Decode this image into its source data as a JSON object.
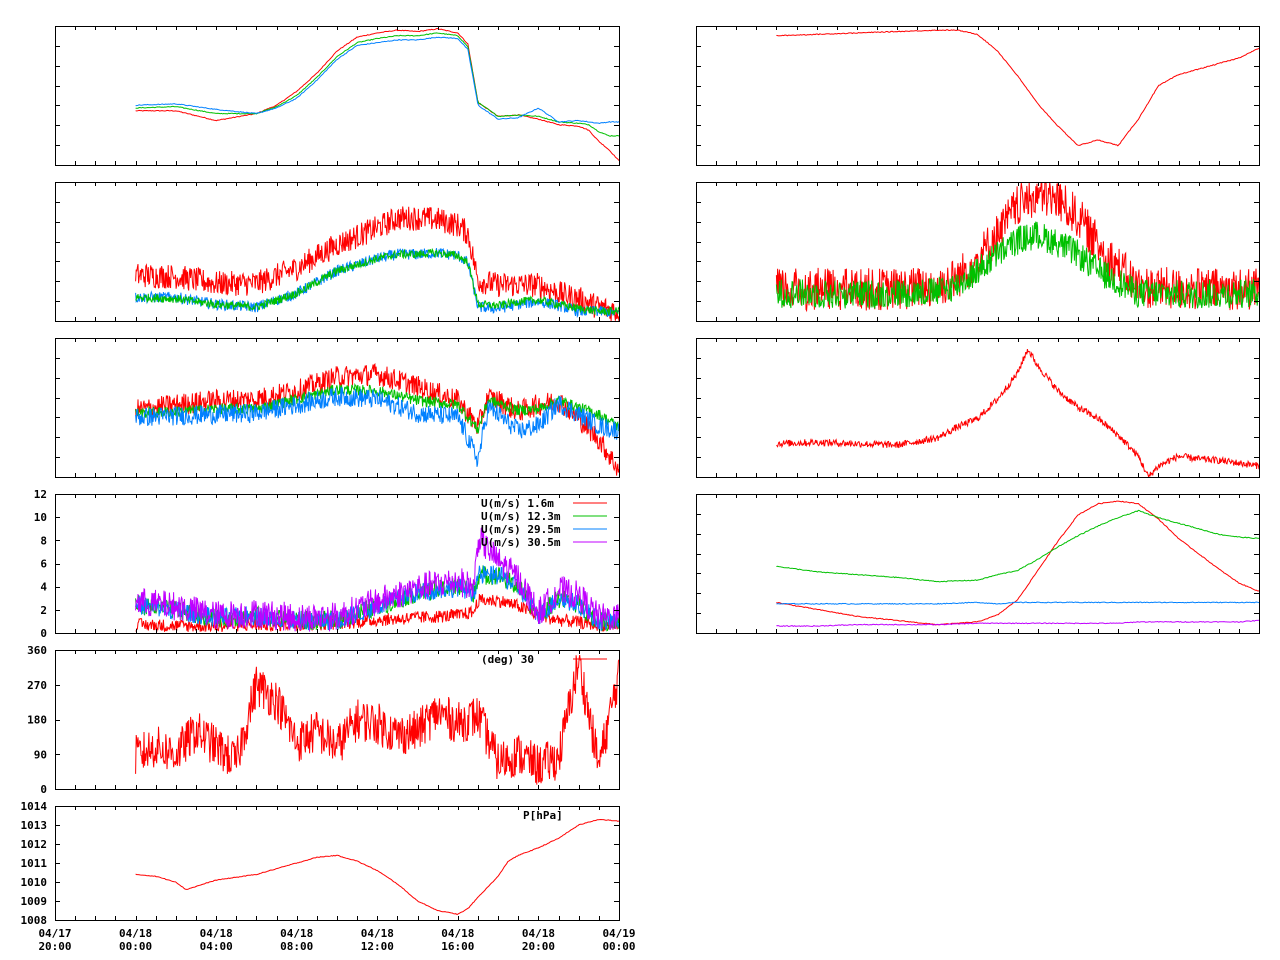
{
  "colors": {
    "red": "#ff0000",
    "green": "#00c000",
    "blue": "#0080ff",
    "purple": "#c000ff",
    "frame": "#000000",
    "background": "#ffffff"
  },
  "x_axis": {
    "range": [
      "04/17 20:00",
      "04/19 00:00"
    ],
    "ticks": [
      {
        "date": "04/17",
        "time": "20:00"
      },
      {
        "date": "04/18",
        "time": "00:00"
      },
      {
        "date": "04/18",
        "time": "04:00"
      },
      {
        "date": "04/18",
        "time": "08:00"
      },
      {
        "date": "04/18",
        "time": "12:00"
      },
      {
        "date": "04/18",
        "time": "16:00"
      },
      {
        "date": "04/18",
        "time": "20:00"
      },
      {
        "date": "04/19",
        "time": "00:00"
      }
    ]
  },
  "chart_data": [
    {
      "id": "left-temperature",
      "type": "line",
      "y_labels_shown": false,
      "ylim": [
        0,
        1
      ],
      "x_hours": [
        4,
        6,
        8,
        10,
        11,
        12,
        13,
        14,
        15,
        16,
        17,
        18,
        19,
        20,
        20.5,
        21,
        22,
        23,
        24,
        25,
        26,
        26.5,
        27,
        27.5,
        28
      ],
      "series": [
        {
          "color": "red",
          "values": [
            0.39,
            0.39,
            0.32,
            0.37,
            0.43,
            0.53,
            0.66,
            0.82,
            0.92,
            0.95,
            0.97,
            0.96,
            0.98,
            0.95,
            0.87,
            0.45,
            0.35,
            0.36,
            0.33,
            0.29,
            0.28,
            0.25,
            0.17,
            0.11,
            0.03
          ]
        },
        {
          "color": "green",
          "values": [
            0.41,
            0.42,
            0.37,
            0.37,
            0.42,
            0.5,
            0.63,
            0.78,
            0.88,
            0.91,
            0.93,
            0.93,
            0.95,
            0.93,
            0.85,
            0.45,
            0.35,
            0.36,
            0.35,
            0.31,
            0.3,
            0.29,
            0.24,
            0.21,
            0.21
          ]
        },
        {
          "color": "blue",
          "values": [
            0.43,
            0.44,
            0.4,
            0.37,
            0.41,
            0.48,
            0.61,
            0.76,
            0.86,
            0.88,
            0.9,
            0.9,
            0.92,
            0.91,
            0.83,
            0.43,
            0.33,
            0.34,
            0.41,
            0.31,
            0.32,
            0.31,
            0.3,
            0.31,
            0.31
          ]
        }
      ]
    },
    {
      "id": "left-humidity",
      "type": "line",
      "y_labels_shown": false,
      "ylim": [
        0,
        1
      ],
      "x_hours": [
        4,
        6,
        8,
        10,
        12,
        14,
        16,
        17,
        18,
        19,
        20,
        20.5,
        21,
        22,
        23,
        24,
        25,
        26,
        27,
        28
      ],
      "series": [
        {
          "color": "red",
          "values": [
            0.33,
            0.32,
            0.27,
            0.27,
            0.38,
            0.55,
            0.67,
            0.74,
            0.74,
            0.73,
            0.69,
            0.63,
            0.29,
            0.26,
            0.26,
            0.26,
            0.2,
            0.16,
            0.1,
            0.07
          ],
          "noise": 0.09
        },
        {
          "color": "blue",
          "values": [
            0.17,
            0.17,
            0.12,
            0.1,
            0.2,
            0.36,
            0.45,
            0.48,
            0.48,
            0.49,
            0.47,
            0.42,
            0.1,
            0.09,
            0.12,
            0.14,
            0.11,
            0.07,
            0.07,
            0.06
          ],
          "noise": 0.04
        },
        {
          "color": "green",
          "values": [
            0.17,
            0.16,
            0.12,
            0.1,
            0.2,
            0.36,
            0.45,
            0.48,
            0.48,
            0.49,
            0.47,
            0.42,
            0.12,
            0.11,
            0.14,
            0.15,
            0.12,
            0.09,
            0.07,
            0.07
          ],
          "noise": 0.03
        }
      ]
    },
    {
      "id": "left-temperature-diff",
      "type": "line",
      "y_labels_shown": false,
      "ylim": [
        0,
        1
      ],
      "x_hours": [
        4,
        6,
        8,
        10,
        12,
        14,
        16,
        18,
        20,
        21,
        21.5,
        22,
        23,
        24,
        25,
        26,
        27,
        28
      ],
      "series": [
        {
          "color": "red",
          "values": [
            0.48,
            0.52,
            0.55,
            0.56,
            0.62,
            0.72,
            0.74,
            0.65,
            0.55,
            0.36,
            0.57,
            0.55,
            0.47,
            0.52,
            0.55,
            0.42,
            0.27,
            0.05
          ],
          "noise": 0.08
        },
        {
          "color": "green",
          "values": [
            0.46,
            0.47,
            0.49,
            0.49,
            0.56,
            0.63,
            0.62,
            0.55,
            0.52,
            0.34,
            0.55,
            0.53,
            0.48,
            0.49,
            0.55,
            0.5,
            0.45,
            0.36
          ],
          "noise": 0.04
        },
        {
          "color": "blue",
          "values": [
            0.43,
            0.44,
            0.45,
            0.46,
            0.52,
            0.58,
            0.56,
            0.46,
            0.43,
            0.12,
            0.5,
            0.45,
            0.33,
            0.37,
            0.53,
            0.45,
            0.37,
            0.33
          ],
          "noise": 0.07
        }
      ]
    },
    {
      "id": "left-wind-speed",
      "type": "line",
      "ylim": [
        0,
        12
      ],
      "yticks": [
        0,
        2,
        4,
        6,
        8,
        10,
        12
      ],
      "x_hours": [
        4,
        6,
        8,
        10,
        12,
        14,
        16,
        18,
        20,
        20.8,
        21,
        22,
        23,
        24,
        25,
        26,
        27,
        28
      ],
      "legend": [
        "U(m/s)  1.6m",
        "U(m/s) 12.3m",
        "U(m/s) 29.5m",
        "U(m/s) 30.5m"
      ],
      "series": [
        {
          "color": "red",
          "values": [
            0.4,
            0.3,
            0.3,
            0.4,
            0.4,
            0.5,
            0.8,
            1.0,
            1.2,
            1.5,
            2.5,
            2.5,
            2.0,
            1.2,
            0.8,
            0.6,
            0.4,
            0.3
          ],
          "noise": 0.8
        },
        {
          "color": "green",
          "values": [
            2.0,
            1.5,
            0.8,
            1.0,
            0.6,
            0.6,
            1.8,
            3.0,
            3.5,
            3.0,
            4.5,
            4.5,
            3.5,
            1.0,
            2.5,
            2.0,
            0.5,
            0.6
          ],
          "noise": 1.2
        },
        {
          "color": "blue",
          "values": [
            2.0,
            1.5,
            0.8,
            1.0,
            0.6,
            0.6,
            1.8,
            3.0,
            3.5,
            3.0,
            4.5,
            4.5,
            3.5,
            1.0,
            2.5,
            2.0,
            0.5,
            0.6
          ],
          "noise": 1.2
        },
        {
          "color": "purple",
          "values": [
            2.0,
            1.6,
            0.8,
            1.0,
            0.6,
            0.7,
            2.0,
            3.2,
            3.8,
            3.2,
            7.5,
            5.5,
            4.0,
            1.0,
            3.0,
            2.5,
            0.6,
            0.7
          ],
          "noise": 1.8
        }
      ]
    },
    {
      "id": "left-wind-direction",
      "type": "line",
      "ylim": [
        0,
        360
      ],
      "yticks": [
        0,
        90,
        180,
        270,
        360
      ],
      "legend": [
        "(deg)  30"
      ],
      "x_hours": [
        4,
        5,
        6,
        7,
        8,
        9,
        10,
        11,
        12,
        13,
        14,
        15,
        16,
        17,
        18,
        19,
        20,
        21,
        22,
        23,
        24,
        25,
        26,
        27,
        28
      ],
      "series": [
        {
          "color": "red",
          "values": [
            85,
            110,
            90,
            150,
            110,
            70,
            270,
            230,
            120,
            150,
            110,
            180,
            170,
            140,
            150,
            200,
            170,
            190,
            70,
            90,
            60,
            80,
            330,
            60,
            300
          ],
          "noise": 55
        }
      ]
    },
    {
      "id": "left-pressure",
      "type": "line",
      "ylim": [
        1008,
        1014
      ],
      "yticks": [
        1008,
        1009,
        1010,
        1011,
        1012,
        1013,
        1014
      ],
      "legend": [
        "P[hPa]"
      ],
      "x_hours": [
        4,
        5,
        6,
        6.5,
        8,
        10,
        12,
        13,
        14,
        15,
        16,
        17,
        18,
        19,
        20,
        20.5,
        21,
        22,
        22.5,
        23,
        24,
        25,
        26,
        27,
        28
      ],
      "series": [
        {
          "color": "red",
          "values": [
            1010.4,
            1010.3,
            1010.0,
            1009.6,
            1010.1,
            1010.4,
            1011.0,
            1011.3,
            1011.4,
            1011.1,
            1010.6,
            1009.9,
            1009.0,
            1008.5,
            1008.3,
            1008.6,
            1009.2,
            1010.3,
            1011.1,
            1011.4,
            1011.8,
            1012.3,
            1013.0,
            1013.3,
            1013.2
          ]
        }
      ]
    },
    {
      "id": "right-temperature",
      "type": "line",
      "y_labels_shown": false,
      "ylim": [
        0,
        1
      ],
      "x_hours": [
        4,
        6,
        8,
        10,
        12,
        13,
        14,
        15,
        16,
        17,
        18,
        19,
        20,
        21,
        22,
        23,
        24,
        25,
        26,
        27,
        28
      ],
      "series": [
        {
          "color": "red",
          "values": [
            0.93,
            0.94,
            0.95,
            0.96,
            0.97,
            0.97,
            0.94,
            0.82,
            0.64,
            0.44,
            0.28,
            0.14,
            0.18,
            0.14,
            0.33,
            0.57,
            0.65,
            0.69,
            0.73,
            0.77,
            0.84
          ]
        }
      ]
    },
    {
      "id": "right-radiation",
      "type": "line",
      "y_labels_shown": false,
      "ylim": [
        0,
        1
      ],
      "x_hours": [
        4,
        8,
        10,
        12,
        13,
        14,
        15,
        16,
        17,
        18,
        19,
        20,
        21,
        22,
        23,
        24,
        28
      ],
      "series": [
        {
          "color": "red",
          "values": [
            0.14,
            0.14,
            0.14,
            0.16,
            0.22,
            0.36,
            0.54,
            0.74,
            0.82,
            0.78,
            0.66,
            0.46,
            0.3,
            0.16,
            0.15,
            0.14,
            0.14
          ],
          "noise": 0.22
        },
        {
          "color": "green",
          "values": [
            0.14,
            0.13,
            0.14,
            0.15,
            0.2,
            0.3,
            0.42,
            0.52,
            0.56,
            0.5,
            0.42,
            0.3,
            0.22,
            0.14,
            0.14,
            0.13,
            0.14
          ],
          "noise": 0.15
        }
      ]
    },
    {
      "id": "right-gradient",
      "type": "line",
      "y_labels_shown": false,
      "ylim": [
        0,
        1
      ],
      "x_hours": [
        4,
        6,
        8,
        10,
        12,
        13,
        14,
        15,
        16,
        16.5,
        17,
        18,
        19,
        20,
        21,
        22,
        22.5,
        23,
        24,
        25,
        26,
        27,
        28
      ],
      "series": [
        {
          "color": "red",
          "values": [
            0.24,
            0.25,
            0.24,
            0.23,
            0.28,
            0.36,
            0.42,
            0.56,
            0.75,
            0.92,
            0.8,
            0.62,
            0.5,
            0.42,
            0.3,
            0.15,
            0.0,
            0.08,
            0.15,
            0.13,
            0.12,
            0.1,
            0.08
          ],
          "noise": 0.025
        }
      ]
    },
    {
      "id": "right-multi",
      "type": "line",
      "y_labels_shown": false,
      "ylim": [
        0,
        1
      ],
      "x_hours": [
        4,
        6,
        8,
        10,
        12,
        14,
        15,
        16,
        17,
        18,
        19,
        20,
        21,
        22,
        23,
        24,
        25,
        26,
        27,
        28
      ],
      "series": [
        {
          "color": "red",
          "values": [
            0.22,
            0.17,
            0.12,
            0.09,
            0.06,
            0.08,
            0.13,
            0.24,
            0.45,
            0.66,
            0.85,
            0.93,
            0.95,
            0.93,
            0.82,
            0.68,
            0.57,
            0.46,
            0.36,
            0.3
          ]
        },
        {
          "color": "green",
          "values": [
            0.48,
            0.44,
            0.42,
            0.4,
            0.37,
            0.38,
            0.42,
            0.45,
            0.53,
            0.62,
            0.7,
            0.77,
            0.83,
            0.88,
            0.83,
            0.79,
            0.75,
            0.71,
            0.69,
            0.68
          ]
        },
        {
          "color": "blue",
          "values": [
            0.21,
            0.21,
            0.21,
            0.21,
            0.21,
            0.22,
            0.21,
            0.22,
            0.22,
            0.22,
            0.22,
            0.22,
            0.22,
            0.22,
            0.22,
            0.22,
            0.22,
            0.22,
            0.22,
            0.22
          ]
        },
        {
          "color": "purple",
          "values": [
            0.05,
            0.05,
            0.06,
            0.06,
            0.06,
            0.07,
            0.07,
            0.07,
            0.07,
            0.07,
            0.07,
            0.07,
            0.07,
            0.08,
            0.08,
            0.08,
            0.08,
            0.08,
            0.08,
            0.09
          ]
        }
      ]
    }
  ]
}
